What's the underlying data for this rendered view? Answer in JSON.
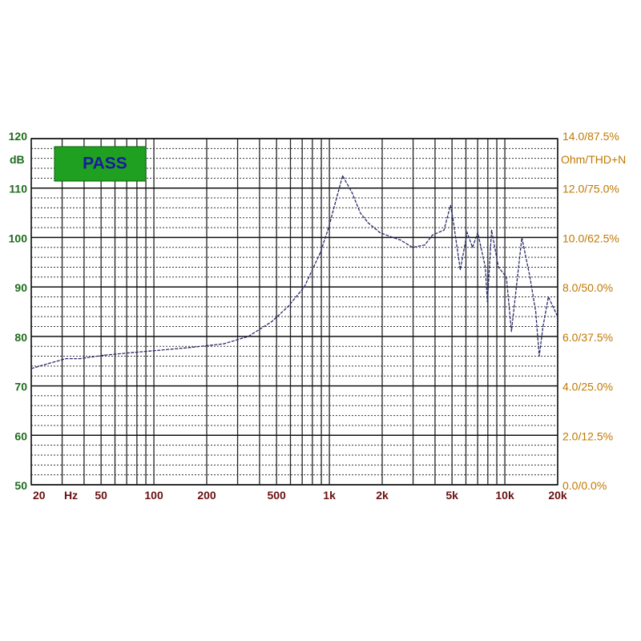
{
  "chart_data": {
    "type": "line",
    "title": "",
    "xlabel": "Hz",
    "ylabel": "dB",
    "ylabel_right": "Ohm/THD+N",
    "x_scale": "log",
    "xlim": [
      20,
      20000
    ],
    "ylim": [
      50,
      120
    ],
    "grid": true,
    "x_ticks": [
      {
        "value": 20,
        "label": "20"
      },
      {
        "value": 50,
        "label": "50"
      },
      {
        "value": 100,
        "label": "100"
      },
      {
        "value": 200,
        "label": "200"
      },
      {
        "value": 500,
        "label": "500"
      },
      {
        "value": 1000,
        "label": "1k"
      },
      {
        "value": 2000,
        "label": "2k"
      },
      {
        "value": 5000,
        "label": "5k"
      },
      {
        "value": 10000,
        "label": "10k"
      },
      {
        "value": 20000,
        "label": "20k"
      }
    ],
    "y_ticks": [
      120,
      110,
      100,
      90,
      80,
      70,
      60,
      50
    ],
    "y_right_ticks": [
      "14.0/87.5%",
      "12.0/75.0%",
      "10.0/62.5%",
      "8.0/50.0%",
      "6.0/37.5%",
      "4.0/25.0%",
      "2.0/12.5%",
      "0.0/0.0%"
    ],
    "badge": {
      "text": "PASS",
      "color": "#20a020",
      "text_color": "#1a1aa0"
    },
    "line_color": "#2a2a6a",
    "series": [
      {
        "x": [
          20,
          25,
          31.5,
          38,
          52,
          79,
          108,
          166,
          250,
          345,
          470,
          580,
          720,
          890,
          990,
          1100,
          1190,
          1350,
          1500,
          1660,
          1940,
          2300,
          2540,
          2980,
          3500,
          3870,
          4500,
          4900,
          5050,
          5570,
          6100,
          6540,
          7000,
          7740,
          7950,
          8400,
          9200,
          10200,
          10900,
          12500,
          13900,
          15000,
          15700,
          16500,
          17700,
          20000
        ],
        "y": [
          73.5,
          74.5,
          75.5,
          75.5,
          76.2,
          76.8,
          77.2,
          77.8,
          78.5,
          80,
          83,
          86,
          90,
          97,
          102,
          108,
          112.5,
          109,
          105,
          103,
          101,
          100,
          99.5,
          98,
          98.5,
          100.5,
          101.5,
          106.5,
          104,
          93.5,
          101,
          98,
          101,
          94,
          87,
          101.5,
          94,
          92,
          81,
          100,
          92,
          85,
          76,
          82,
          88,
          84
        ]
      }
    ]
  }
}
